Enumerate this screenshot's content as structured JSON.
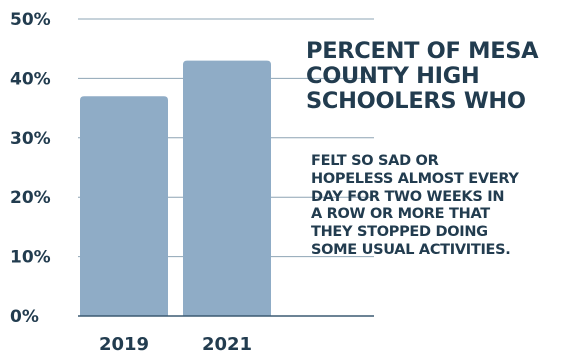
{
  "chart_data": {
    "type": "bar",
    "categories": [
      "2019",
      "2021"
    ],
    "values": [
      37,
      43
    ],
    "value_unit": "%",
    "ylim": [
      0,
      50
    ],
    "yticks": [
      "0%",
      "10%",
      "20%",
      "30%",
      "40%",
      "50%"
    ],
    "ytick_values": [
      0,
      10,
      20,
      30,
      40,
      50
    ],
    "grid": true,
    "legend": "none",
    "title_lines": [
      "PERCENT OF MESA",
      "COUNTY HIGH",
      "SCHOOLERS WHO"
    ],
    "subtitle_lines": [
      "FELT SO SAD OR",
      "HOPELESS ALMOST EVERY",
      "DAY FOR TWO WEEKS IN",
      "A ROW OR MORE THAT",
      "THEY STOPPED DOING",
      "SOME USUAL ACTIVITIES."
    ],
    "colors": {
      "bar": "#8facc6",
      "grid": "#8ea4b4",
      "axis": "#3c5a72",
      "text": "#223c4f"
    }
  }
}
